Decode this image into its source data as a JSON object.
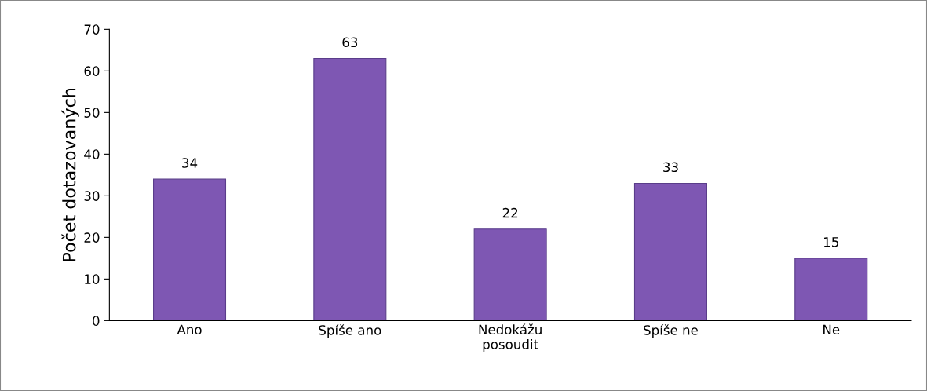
{
  "chart_data": {
    "type": "bar",
    "ylabel": "Počet dotazovaných",
    "categories": [
      "Ano",
      "Spíše ano",
      "Nedokážu\nposoudit",
      "Spíše ne",
      "Ne"
    ],
    "values": [
      34,
      63,
      22,
      33,
      15
    ],
    "color": "#7e57b3",
    "ylim": [
      0,
      70
    ],
    "yticks": [
      0,
      10,
      20,
      30,
      40,
      50,
      60,
      70
    ],
    "grid": false,
    "data_labels": true
  }
}
